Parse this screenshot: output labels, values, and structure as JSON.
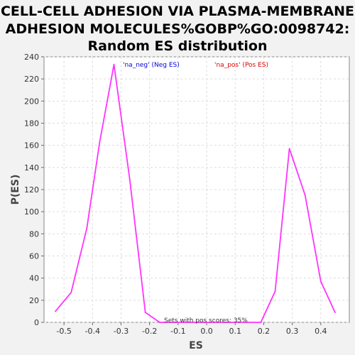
{
  "chart_data": {
    "type": "line",
    "title_lines": [
      "CELL-CELL ADHESION VIA PLASMA-MEMBRANE",
      "ADHESION MOLECULES%GOBP%GO:0098742:",
      "Random ES distribution"
    ],
    "xlabel": "ES",
    "ylabel": "P(ES)",
    "xlim": [
      -0.57,
      0.5
    ],
    "ylim": [
      0,
      240
    ],
    "xticks": [
      -0.5,
      -0.4,
      -0.3,
      -0.2,
      -0.1,
      0.0,
      0.1,
      0.2,
      0.3,
      0.4
    ],
    "xtick_labels": [
      "-0.5",
      "-0.4",
      "-0.3",
      "-0.2",
      "-0.1",
      "0.0",
      "0.1",
      "0.2",
      "0.3",
      "0.4"
    ],
    "yticks": [
      0,
      20,
      40,
      60,
      80,
      100,
      120,
      140,
      160,
      180,
      200,
      220,
      240
    ],
    "ytick_labels": [
      "0",
      "20",
      "40",
      "60",
      "80",
      "100",
      "120",
      "140",
      "160",
      "180",
      "200",
      "220",
      "240"
    ],
    "grid": true,
    "series": [
      {
        "color": "#ff33ff",
        "points": [
          {
            "x": -0.53,
            "y": 10
          },
          {
            "x": -0.475,
            "y": 27
          },
          {
            "x": -0.42,
            "y": 85
          },
          {
            "x": -0.375,
            "y": 163
          },
          {
            "x": -0.325,
            "y": 233
          },
          {
            "x": -0.27,
            "y": 130
          },
          {
            "x": -0.215,
            "y": 9
          },
          {
            "x": -0.165,
            "y": 0
          },
          {
            "x": 0.19,
            "y": 0
          },
          {
            "x": 0.24,
            "y": 28
          },
          {
            "x": 0.29,
            "y": 157
          },
          {
            "x": 0.345,
            "y": 115
          },
          {
            "x": 0.4,
            "y": 37
          },
          {
            "x": 0.45,
            "y": 9
          }
        ]
      }
    ],
    "legend": [
      {
        "text": "'na_neg' (Neg ES)",
        "color": "#0000dd"
      },
      {
        "text": "'na_pos' (Pos ES)",
        "color": "#dd0000"
      }
    ],
    "legend_placement": "top-center",
    "annotation": "Sets with pos scores: 35%"
  }
}
